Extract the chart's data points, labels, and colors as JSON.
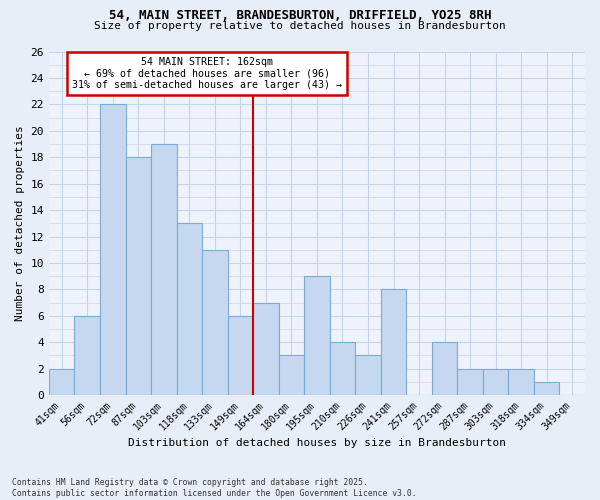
{
  "title1": "54, MAIN STREET, BRANDESBURTON, DRIFFIELD, YO25 8RH",
  "title2": "Size of property relative to detached houses in Brandesburton",
  "xlabel": "Distribution of detached houses by size in Brandesburton",
  "ylabel": "Number of detached properties",
  "categories": [
    "41sqm",
    "56sqm",
    "72sqm",
    "87sqm",
    "103sqm",
    "118sqm",
    "133sqm",
    "149sqm",
    "164sqm",
    "180sqm",
    "195sqm",
    "210sqm",
    "226sqm",
    "241sqm",
    "257sqm",
    "272sqm",
    "287sqm",
    "303sqm",
    "318sqm",
    "334sqm",
    "349sqm"
  ],
  "values": [
    2,
    6,
    22,
    18,
    19,
    13,
    11,
    6,
    7,
    3,
    9,
    4,
    3,
    8,
    0,
    4,
    2,
    2,
    2,
    1,
    0
  ],
  "bar_color": "#c5d8f0",
  "bar_edge_color": "#7badd4",
  "vline_index": 8,
  "annotation_title": "54 MAIN STREET: 162sqm",
  "annotation_line1": "← 69% of detached houses are smaller (96)",
  "annotation_line2": "31% of semi-detached houses are larger (43) →",
  "annotation_box_color": "#ffffff",
  "annotation_box_edge": "#cc0000",
  "vline_color": "#cc0000",
  "ylim": [
    0,
    26
  ],
  "yticks": [
    0,
    2,
    4,
    6,
    8,
    10,
    12,
    14,
    16,
    18,
    20,
    22,
    24,
    26
  ],
  "footnote1": "Contains HM Land Registry data © Crown copyright and database right 2025.",
  "footnote2": "Contains public sector information licensed under the Open Government Licence v3.0.",
  "bg_color": "#e8eef7",
  "plot_bg_color": "#eef2fa",
  "grid_color": "#c8d4e8"
}
